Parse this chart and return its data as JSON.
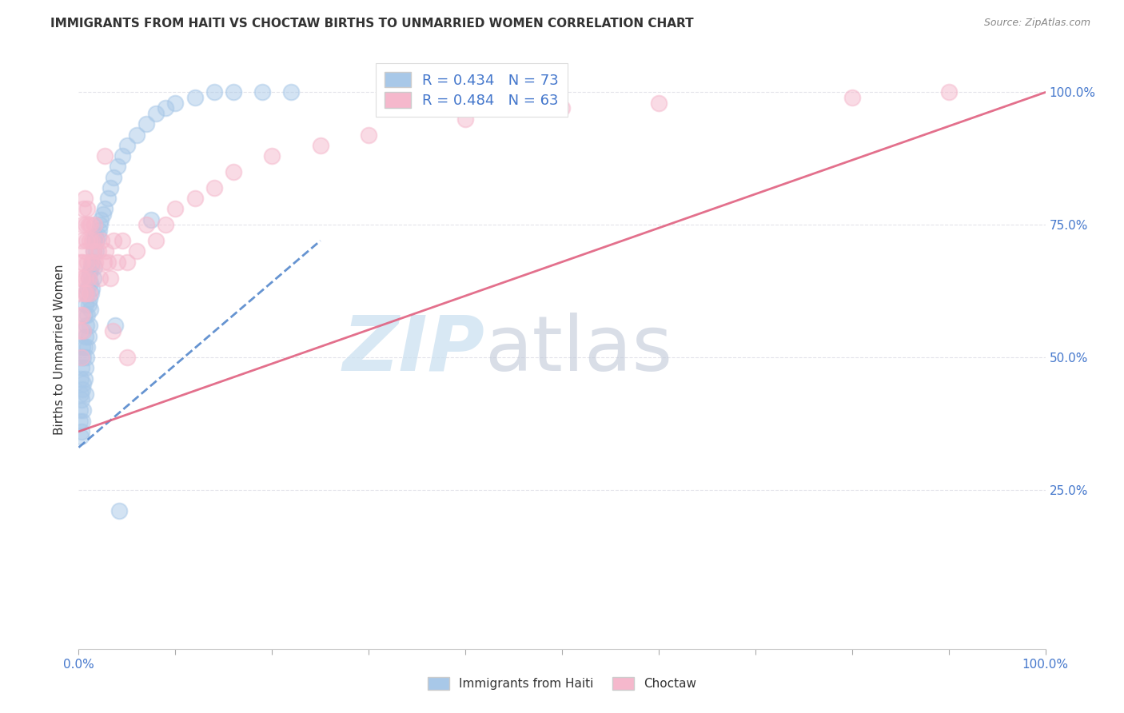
{
  "title": "IMMIGRANTS FROM HAITI VS CHOCTAW BIRTHS TO UNMARRIED WOMEN CORRELATION CHART",
  "source": "Source: ZipAtlas.com",
  "ylabel": "Births to Unmarried Women",
  "legend_haiti": "R = 0.434   N = 73",
  "legend_choctaw": "R = 0.484   N = 63",
  "legend_label_haiti": "Immigrants from Haiti",
  "legend_label_choctaw": "Choctaw",
  "color_haiti": "#a8c8e8",
  "color_choctaw": "#f5b8cc",
  "line_haiti": "#5588cc",
  "line_choctaw": "#e06080",
  "color_haiti_edge": "#a8c8e8",
  "color_choctaw_edge": "#f5b8cc",
  "background_color": "#ffffff",
  "grid_color": "#e0e0e8",
  "text_color": "#4477cc",
  "title_color": "#333333",
  "haiti_x": [
    0.001,
    0.001,
    0.002,
    0.002,
    0.002,
    0.003,
    0.003,
    0.003,
    0.003,
    0.004,
    0.004,
    0.004,
    0.005,
    0.005,
    0.005,
    0.005,
    0.006,
    0.006,
    0.006,
    0.007,
    0.007,
    0.007,
    0.007,
    0.008,
    0.008,
    0.008,
    0.009,
    0.009,
    0.009,
    0.01,
    0.01,
    0.01,
    0.011,
    0.011,
    0.011,
    0.012,
    0.012,
    0.013,
    0.013,
    0.014,
    0.014,
    0.015,
    0.015,
    0.016,
    0.016,
    0.017,
    0.018,
    0.019,
    0.02,
    0.021,
    0.022,
    0.023,
    0.025,
    0.027,
    0.03,
    0.033,
    0.036,
    0.04,
    0.045,
    0.05,
    0.06,
    0.07,
    0.08,
    0.09,
    0.1,
    0.12,
    0.14,
    0.16,
    0.19,
    0.22,
    0.075,
    0.038,
    0.042
  ],
  "haiti_y": [
    0.4,
    0.38,
    0.43,
    0.46,
    0.35,
    0.5,
    0.48,
    0.42,
    0.36,
    0.52,
    0.44,
    0.38,
    0.55,
    0.5,
    0.45,
    0.4,
    0.58,
    0.52,
    0.46,
    0.6,
    0.54,
    0.48,
    0.43,
    0.62,
    0.56,
    0.5,
    0.63,
    0.58,
    0.52,
    0.65,
    0.6,
    0.54,
    0.66,
    0.61,
    0.56,
    0.64,
    0.59,
    0.67,
    0.62,
    0.68,
    0.63,
    0.7,
    0.65,
    0.72,
    0.67,
    0.73,
    0.7,
    0.72,
    0.73,
    0.74,
    0.75,
    0.76,
    0.77,
    0.78,
    0.8,
    0.82,
    0.84,
    0.86,
    0.88,
    0.9,
    0.92,
    0.94,
    0.96,
    0.97,
    0.98,
    0.99,
    1.0,
    1.0,
    1.0,
    1.0,
    0.76,
    0.56,
    0.21
  ],
  "choctaw_x": [
    0.001,
    0.001,
    0.002,
    0.002,
    0.003,
    0.003,
    0.003,
    0.004,
    0.004,
    0.004,
    0.005,
    0.005,
    0.005,
    0.006,
    0.006,
    0.006,
    0.007,
    0.007,
    0.008,
    0.008,
    0.009,
    0.009,
    0.01,
    0.01,
    0.011,
    0.011,
    0.012,
    0.013,
    0.014,
    0.015,
    0.016,
    0.017,
    0.018,
    0.02,
    0.022,
    0.024,
    0.026,
    0.028,
    0.03,
    0.033,
    0.036,
    0.04,
    0.045,
    0.05,
    0.06,
    0.07,
    0.08,
    0.09,
    0.1,
    0.12,
    0.14,
    0.16,
    0.2,
    0.25,
    0.3,
    0.4,
    0.5,
    0.6,
    0.8,
    0.9,
    0.027,
    0.035,
    0.05
  ],
  "choctaw_y": [
    0.55,
    0.62,
    0.58,
    0.68,
    0.72,
    0.65,
    0.5,
    0.75,
    0.68,
    0.58,
    0.78,
    0.65,
    0.55,
    0.8,
    0.7,
    0.62,
    0.75,
    0.65,
    0.72,
    0.62,
    0.78,
    0.68,
    0.75,
    0.65,
    0.72,
    0.62,
    0.75,
    0.68,
    0.72,
    0.7,
    0.75,
    0.68,
    0.72,
    0.7,
    0.65,
    0.72,
    0.68,
    0.7,
    0.68,
    0.65,
    0.72,
    0.68,
    0.72,
    0.68,
    0.7,
    0.75,
    0.72,
    0.75,
    0.78,
    0.8,
    0.82,
    0.85,
    0.88,
    0.9,
    0.92,
    0.95,
    0.97,
    0.98,
    0.99,
    1.0,
    0.88,
    0.55,
    0.5
  ],
  "haiti_line_x": [
    0.0,
    0.25
  ],
  "haiti_line_y": [
    0.33,
    0.72
  ],
  "choctaw_line_x": [
    0.0,
    1.0
  ],
  "choctaw_line_y": [
    0.36,
    1.0
  ],
  "xlim": [
    0.0,
    1.0
  ],
  "ylim": [
    -0.05,
    1.08
  ],
  "yticks": [
    0.25,
    0.5,
    0.75,
    1.0
  ],
  "ytick_labels": [
    "25.0%",
    "50.0%",
    "75.0%",
    "100.0%"
  ],
  "xticks": [
    0.0,
    0.1,
    0.2,
    0.3,
    0.4,
    0.5,
    0.6,
    0.7,
    0.8,
    0.9,
    1.0
  ],
  "xtick_labels_show": [
    "0.0%",
    "",
    "",
    "",
    "",
    "",
    "",
    "",
    "",
    "",
    "100.0%"
  ]
}
